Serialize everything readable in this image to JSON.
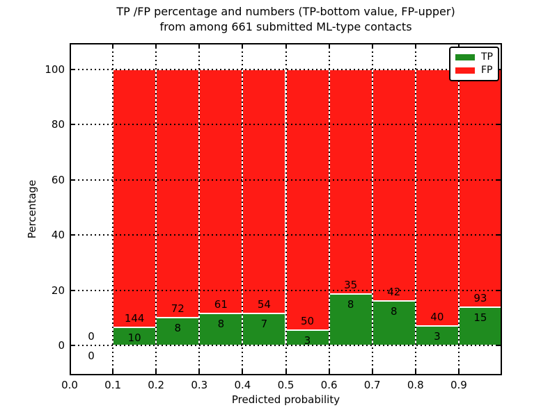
{
  "title": {
    "line1": "TP /FP percentage and numbers (TP-bottom value, FP-upper)",
    "line2": "from among 661 submitted ML-type contacts"
  },
  "axes": {
    "xlabel": "Predicted probability",
    "ylabel": "Percentage"
  },
  "legend": {
    "items": [
      {
        "label": "TP",
        "color": "#1f8b1f"
      },
      {
        "label": "FP",
        "color": "#ff1b15"
      }
    ]
  },
  "chart_data": {
    "type": "bar",
    "stacked": true,
    "normalized_to_percent": true,
    "title": "TP /FP percentage and numbers (TP-bottom value, FP-upper) from among 661 submitted ML-type contacts",
    "xlabel": "Predicted probability",
    "ylabel": "Percentage",
    "total_contacts": 661,
    "bin_width": 0.1,
    "bin_starts": [
      0.0,
      0.1,
      0.2,
      0.3,
      0.4,
      0.5,
      0.6,
      0.7,
      0.8,
      0.9
    ],
    "series": [
      {
        "name": "TP",
        "color": "#1f8b1f",
        "counts": [
          0,
          10,
          8,
          8,
          7,
          3,
          8,
          8,
          3,
          15
        ]
      },
      {
        "name": "FP",
        "color": "#ff1b15",
        "counts": [
          0,
          144,
          72,
          61,
          54,
          50,
          35,
          42,
          40,
          93
        ]
      }
    ],
    "tp_percent_by_bin": [
      0,
      6.49,
      10.0,
      11.59,
      11.48,
      5.66,
      18.6,
      16.0,
      6.98,
      13.89
    ],
    "x_ticks": {
      "values": [
        0.0,
        0.1,
        0.2,
        0.3,
        0.4,
        0.5,
        0.6,
        0.7,
        0.8,
        0.9
      ],
      "labels": [
        "0.0",
        "0.1",
        "0.2",
        "0.3",
        "0.4",
        "0.5",
        "0.6",
        "0.7",
        "0.8",
        "0.9"
      ]
    },
    "y_ticks": {
      "values": [
        0,
        20,
        40,
        60,
        80,
        100
      ],
      "labels": [
        "0",
        "20",
        "40",
        "60",
        "80",
        "100"
      ]
    },
    "xlim": [
      0.0,
      1.0
    ],
    "ylim": [
      -10.8,
      109.6
    ],
    "grid": "dotted",
    "grid_above_bars": true,
    "legend_position": "upper right"
  }
}
